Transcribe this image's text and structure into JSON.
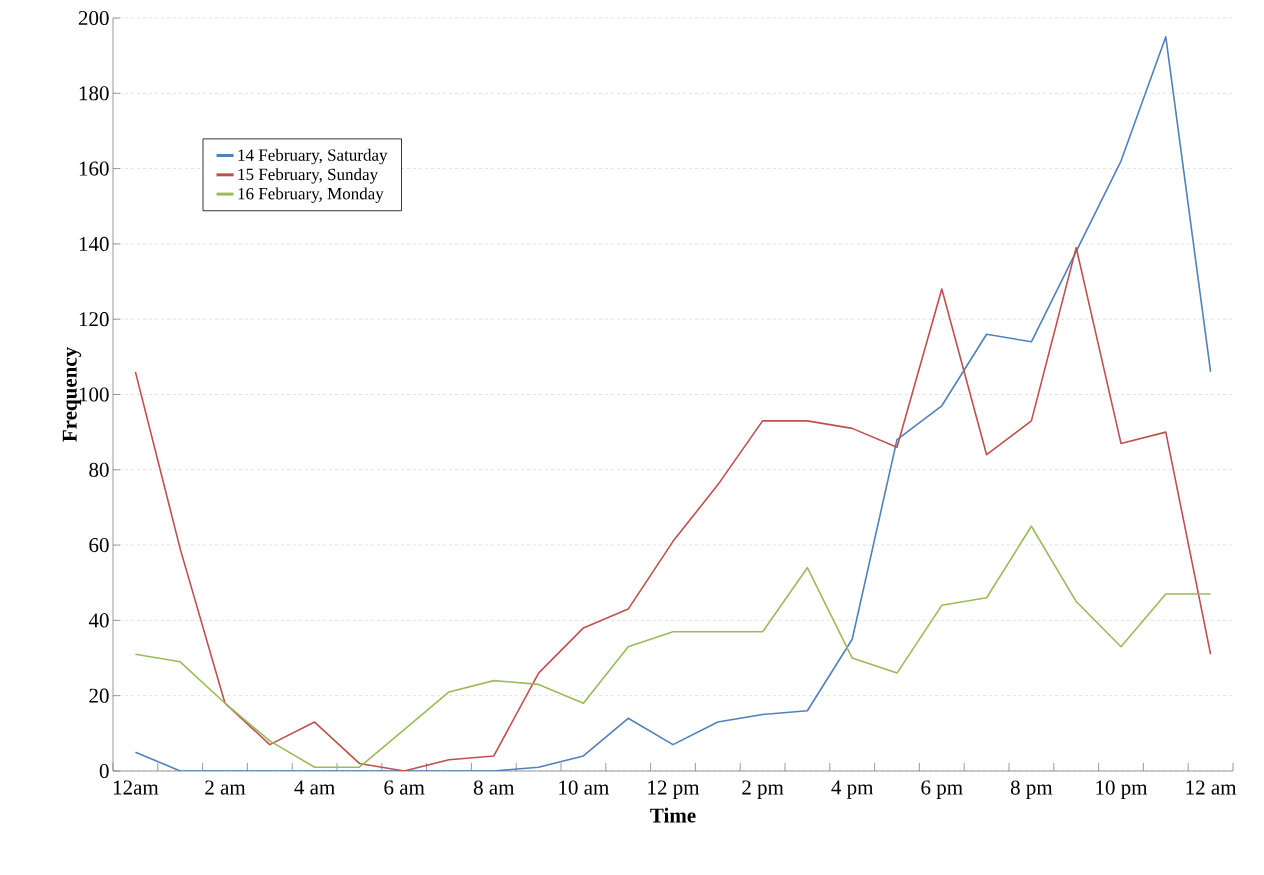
{
  "chart_data": {
    "type": "line",
    "xlabel": "Time",
    "ylabel": "Frequency",
    "categories": [
      "12am",
      null,
      "2 am",
      null,
      "4 am",
      null,
      "6 am",
      null,
      "8 am",
      null,
      "10 am",
      null,
      "12 pm",
      null,
      "2 pm",
      null,
      "4 pm",
      null,
      "6 pm",
      null,
      "8 pm",
      null,
      "10 pm",
      null,
      "12 am"
    ],
    "series": [
      {
        "name": "14 February, Saturday",
        "color": "#4f81bd",
        "values": [
          5,
          0,
          0,
          0,
          0,
          0,
          0,
          0,
          0,
          1,
          4,
          14,
          7,
          13,
          15,
          16,
          35,
          88,
          97,
          116,
          114,
          138,
          162,
          195,
          106
        ]
      },
      {
        "name": "15 February, Sunday",
        "color": "#c0504d",
        "values": [
          106,
          59,
          18,
          7,
          13,
          2,
          0,
          3,
          4,
          26,
          38,
          43,
          61,
          76,
          93,
          93,
          91,
          86,
          128,
          84,
          93,
          139,
          87,
          90,
          31
        ]
      },
      {
        "name": "16 February, Monday",
        "color": "#9bbb59",
        "values": [
          31,
          29,
          18,
          8,
          1,
          1,
          11,
          21,
          24,
          23,
          18,
          33,
          37,
          37,
          37,
          54,
          30,
          26,
          44,
          46,
          65,
          45,
          33,
          47,
          47
        ]
      }
    ],
    "ylim": [
      0,
      200
    ],
    "yticks": [
      0,
      20,
      40,
      60,
      80,
      100,
      120,
      140,
      160,
      180,
      200
    ],
    "grid": "y",
    "legend": "top left",
    "marker": "none",
    "line_style": "solid"
  }
}
